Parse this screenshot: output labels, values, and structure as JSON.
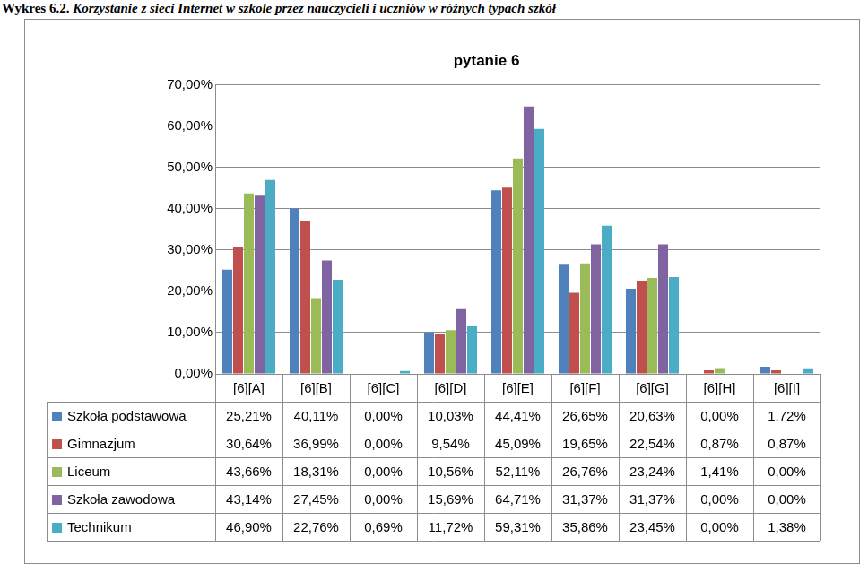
{
  "chart_data": {
    "type": "bar",
    "caption": {
      "label": "Wykres 6.2.",
      "text": "Korzystanie z sieci Internet w szkole przez nauczycieli i uczniów w różnych typach szkół"
    },
    "title": "pytanie 6",
    "categories": [
      "[6][A]",
      "[6][B]",
      "[6][C]",
      "[6][D]",
      "[6][E]",
      "[6][F]",
      "[6][G]",
      "[6][H]",
      "[6][I]"
    ],
    "series": [
      {
        "name": "Szkoła podstawowa",
        "color": "#4f81bd",
        "values": [
          25.21,
          40.11,
          0,
          10.03,
          44.41,
          26.65,
          20.63,
          0,
          1.72
        ],
        "value_labels": [
          "25,21%",
          "40,11%",
          "0,00%",
          "10,03%",
          "44,41%",
          "26,65%",
          "20,63%",
          "0,00%",
          "1,72%"
        ]
      },
      {
        "name": "Gimnazjum",
        "color": "#c0504d",
        "values": [
          30.64,
          36.99,
          0,
          9.54,
          45.09,
          19.65,
          22.54,
          0.87,
          0.87
        ],
        "value_labels": [
          "30,64%",
          "36,99%",
          "0,00%",
          "9,54%",
          "45,09%",
          "19,65%",
          "22,54%",
          "0,87%",
          "0,87%"
        ]
      },
      {
        "name": "Liceum",
        "color": "#9bbb59",
        "values": [
          43.66,
          18.31,
          0,
          10.56,
          52.11,
          26.76,
          23.24,
          1.41,
          0
        ],
        "value_labels": [
          "43,66%",
          "18,31%",
          "0,00%",
          "10,56%",
          "52,11%",
          "26,76%",
          "23,24%",
          "1,41%",
          "0,00%"
        ]
      },
      {
        "name": "Szkoła zawodowa",
        "color": "#8064a2",
        "values": [
          43.14,
          27.45,
          0,
          15.69,
          64.71,
          31.37,
          31.37,
          0,
          0
        ],
        "value_labels": [
          "43,14%",
          "27,45%",
          "0,00%",
          "15,69%",
          "64,71%",
          "31,37%",
          "31,37%",
          "0,00%",
          "0,00%"
        ]
      },
      {
        "name": "Technikum",
        "color": "#4bacc6",
        "values": [
          46.9,
          22.76,
          0.69,
          11.72,
          59.31,
          35.86,
          23.45,
          0,
          1.38
        ],
        "value_labels": [
          "46,90%",
          "22,76%",
          "0,69%",
          "11,72%",
          "59,31%",
          "35,86%",
          "23,45%",
          "0,00%",
          "1,38%"
        ]
      }
    ],
    "ylim": [
      0,
      70
    ],
    "yticks": [
      {
        "value": 0,
        "label": "0,00%"
      },
      {
        "value": 10,
        "label": "10,00%"
      },
      {
        "value": 20,
        "label": "20,00%"
      },
      {
        "value": 30,
        "label": "30,00%"
      },
      {
        "value": 40,
        "label": "40,00%"
      },
      {
        "value": 50,
        "label": "50,00%"
      },
      {
        "value": 60,
        "label": "60,00%"
      },
      {
        "value": 70,
        "label": "70,00%"
      }
    ],
    "grid": true
  }
}
